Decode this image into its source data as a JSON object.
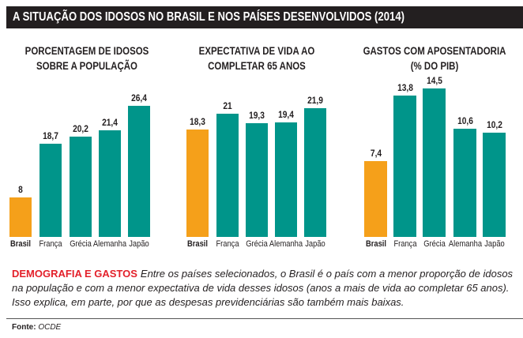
{
  "title": "A SITUAÇÃO DOS IDOSOS NO BRASIL E NOS PAÍSES DESENVOLVIDOS (2014)",
  "colors": {
    "highlight": "#F5A01A",
    "bar": "#00958A",
    "accent_red": "#E3202A"
  },
  "chart_data": [
    {
      "type": "bar",
      "title": "PORCENTAGEM DE IDOSOS SOBRE A POPULAÇÃO",
      "title_lines": [
        "PORCENTAGEM DE IDOSOS",
        "SOBRE A POPULAÇÃO"
      ],
      "categories": [
        "Brasil",
        "França",
        "Grécia",
        "Alemanha",
        "Japão"
      ],
      "values": [
        8,
        18.7,
        20.2,
        21.4,
        26.4
      ],
      "labels": [
        "8",
        "18,7",
        "20,2",
        "21,4",
        "26,4"
      ],
      "highlight": "Brasil"
    },
    {
      "type": "bar",
      "title": "EXPECTATIVA DE VIDA AO COMPLETAR 65 ANOS",
      "title_lines": [
        "EXPECTATIVA DE VIDA AO",
        "COMPLETAR 65 ANOS"
      ],
      "categories": [
        "Brasil",
        "França",
        "Grécia",
        "Alemanha",
        "Japão"
      ],
      "values": [
        18.3,
        21,
        19.3,
        19.4,
        21.9
      ],
      "labels": [
        "18,3",
        "21",
        "19,3",
        "19,4",
        "21,9"
      ],
      "highlight": "Brasil"
    },
    {
      "type": "bar",
      "title": "GASTOS COM APOSENTADORIA (% DO PIB)",
      "title_lines": [
        "GASTOS COM APOSENTADORIA",
        "(% DO PIB)"
      ],
      "categories": [
        "Brasil",
        "França",
        "Grécia",
        "Alemanha",
        "Japão"
      ],
      "values": [
        7.4,
        13.8,
        14.5,
        10.6,
        10.2
      ],
      "labels": [
        "7,4",
        "13,8",
        "14,5",
        "10,6",
        "10,2"
      ],
      "highlight": "Brasil"
    }
  ],
  "note": {
    "heading": "DEMOGRAFIA E GASTOS",
    "body": "Entre os países selecionados, o Brasil é o país com a menor proporção de idosos na população e com a menor expectativa de vida desses idosos (anos a mais de vida ao completar 65 anos). Isso explica, em parte, por que as despesas previdenciárias são também mais baixas."
  },
  "source": {
    "label": "Fonte:",
    "value": "OCDE"
  }
}
